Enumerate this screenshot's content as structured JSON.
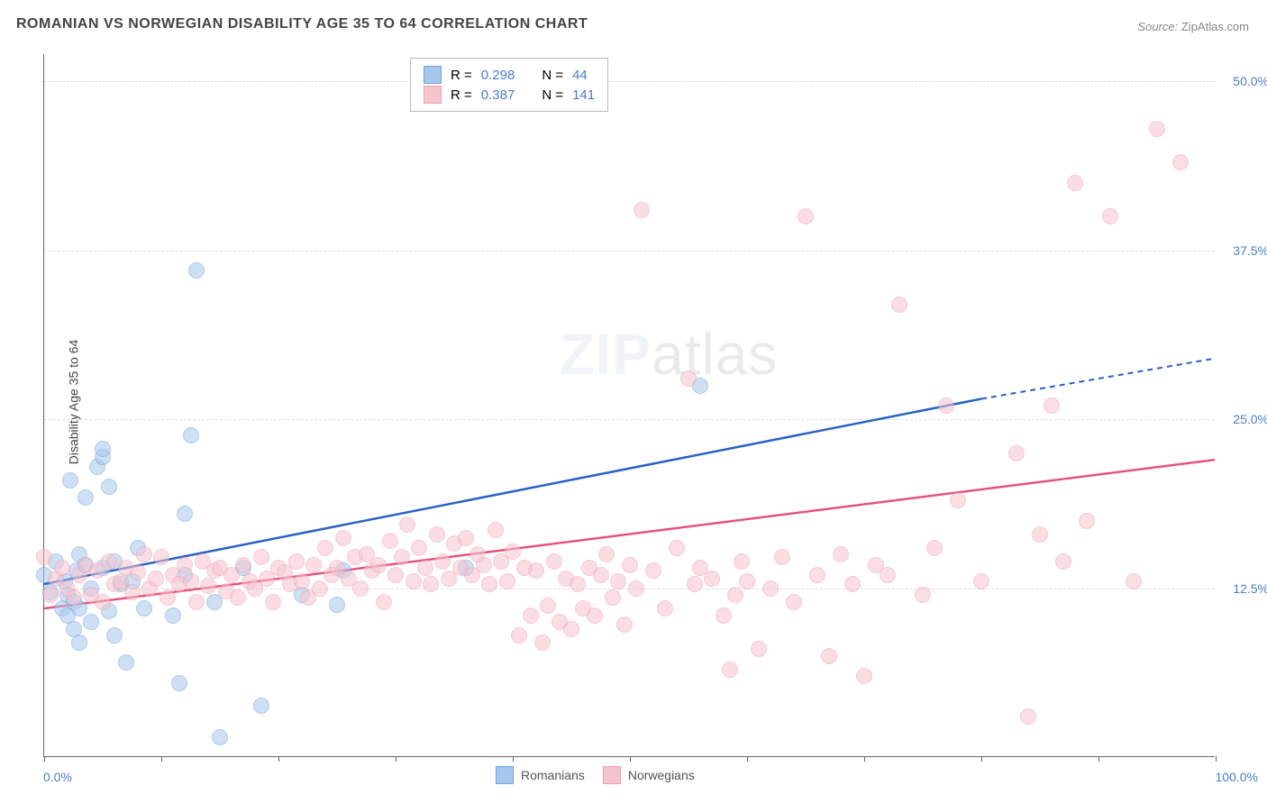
{
  "title": "ROMANIAN VS NORWEGIAN DISABILITY AGE 35 TO 64 CORRELATION CHART",
  "source_label": "Source:",
  "source_name": "ZipAtlas.com",
  "ylabel": "Disability Age 35 to 64",
  "watermark_bold": "ZIP",
  "watermark_light": "atlas",
  "chart": {
    "type": "scatter",
    "xlim": [
      0,
      100
    ],
    "ylim": [
      0,
      52
    ],
    "xtick_positions": [
      0,
      10,
      20,
      30,
      40,
      50,
      60,
      70,
      80,
      90,
      100
    ],
    "ytick_positions": [
      12.5,
      25.0,
      37.5,
      50.0
    ],
    "ytick_labels": [
      "12.5%",
      "25.0%",
      "37.5%",
      "50.0%"
    ],
    "xaxis_label_left": "0.0%",
    "xaxis_label_right": "100.0%",
    "background_color": "#ffffff",
    "grid_color": "#dddddd",
    "plot_border_color": "#666666",
    "point_radius": 9,
    "point_opacity": 0.55,
    "trend_line_width": 2.5,
    "series": [
      {
        "name": "Romanians",
        "color_fill": "#a8c7ec",
        "color_stroke": "#6da3de",
        "R": "0.298",
        "N": "44",
        "trend": {
          "x1": 0,
          "y1": 12.8,
          "x2": 80,
          "y2": 26.5,
          "dash_from_x": 80,
          "dash_to_x": 100,
          "dash_to_y": 29.5
        },
        "points": [
          [
            0,
            13.5
          ],
          [
            0.5,
            12.2
          ],
          [
            1,
            14.5
          ],
          [
            1.5,
            11
          ],
          [
            1.8,
            13
          ],
          [
            2,
            10.5
          ],
          [
            2,
            12
          ],
          [
            2.2,
            20.5
          ],
          [
            2.5,
            11.5
          ],
          [
            2.5,
            9.5
          ],
          [
            2.8,
            13.8
          ],
          [
            3,
            15
          ],
          [
            3,
            8.5
          ],
          [
            3,
            11
          ],
          [
            3.5,
            14.2
          ],
          [
            3.5,
            19.2
          ],
          [
            4,
            10
          ],
          [
            4,
            12.5
          ],
          [
            4.5,
            21.5
          ],
          [
            5,
            14
          ],
          [
            5,
            22.2
          ],
          [
            5,
            22.8
          ],
          [
            5.5,
            10.8
          ],
          [
            5.5,
            20
          ],
          [
            6,
            9
          ],
          [
            6,
            14.5
          ],
          [
            6.5,
            12.8
          ],
          [
            7,
            7
          ],
          [
            7.5,
            13
          ],
          [
            8,
            15.5
          ],
          [
            8.5,
            11
          ],
          [
            11,
            10.5
          ],
          [
            11.5,
            5.5
          ],
          [
            12,
            13.5
          ],
          [
            12,
            18
          ],
          [
            12.5,
            23.8
          ],
          [
            13,
            36
          ],
          [
            14.5,
            11.5
          ],
          [
            15,
            1.5
          ],
          [
            17,
            14
          ],
          [
            18.5,
            3.8
          ],
          [
            22,
            12
          ],
          [
            25,
            11.3
          ],
          [
            25.5,
            13.8
          ],
          [
            36,
            14
          ],
          [
            56,
            27.5
          ]
        ]
      },
      {
        "name": "Norwegians",
        "color_fill": "#f6c4ce",
        "color_stroke": "#eda2b3",
        "R": "0.387",
        "N": "141",
        "trend": {
          "x1": 0,
          "y1": 11.0,
          "x2": 100,
          "y2": 22.0
        },
        "points": [
          [
            0,
            14.8
          ],
          [
            0.5,
            12
          ],
          [
            1,
            13.2
          ],
          [
            1.5,
            14
          ],
          [
            2,
            12.5
          ],
          [
            2.5,
            11.8
          ],
          [
            3,
            13.5
          ],
          [
            3.5,
            14.2
          ],
          [
            4,
            12
          ],
          [
            4.5,
            13.8
          ],
          [
            5,
            11.5
          ],
          [
            5.5,
            14.5
          ],
          [
            6,
            12.8
          ],
          [
            6.5,
            13
          ],
          [
            7,
            14
          ],
          [
            7.5,
            12.2
          ],
          [
            8,
            13.7
          ],
          [
            8.5,
            15
          ],
          [
            9,
            12.5
          ],
          [
            9.5,
            13.2
          ],
          [
            10,
            14.8
          ],
          [
            10.5,
            11.8
          ],
          [
            11,
            13.5
          ],
          [
            11.5,
            12.8
          ],
          [
            12,
            14.2
          ],
          [
            12.5,
            13
          ],
          [
            13,
            11.5
          ],
          [
            13.5,
            14.5
          ],
          [
            14,
            12.7
          ],
          [
            14.5,
            13.8
          ],
          [
            15,
            14
          ],
          [
            15.5,
            12.3
          ],
          [
            16,
            13.5
          ],
          [
            16.5,
            11.8
          ],
          [
            17,
            14.2
          ],
          [
            17.5,
            13
          ],
          [
            18,
            12.5
          ],
          [
            18.5,
            14.8
          ],
          [
            19,
            13.2
          ],
          [
            19.5,
            11.5
          ],
          [
            20,
            14
          ],
          [
            20.5,
            13.7
          ],
          [
            21,
            12.8
          ],
          [
            21.5,
            14.5
          ],
          [
            22,
            13
          ],
          [
            22.5,
            11.8
          ],
          [
            23,
            14.2
          ],
          [
            23.5,
            12.5
          ],
          [
            24,
            15.5
          ],
          [
            24.5,
            13.5
          ],
          [
            25,
            14
          ],
          [
            25.5,
            16.2
          ],
          [
            26,
            13.2
          ],
          [
            26.5,
            14.8
          ],
          [
            27,
            12.5
          ],
          [
            27.5,
            15
          ],
          [
            28,
            13.8
          ],
          [
            28.5,
            14.2
          ],
          [
            29,
            11.5
          ],
          [
            29.5,
            16
          ],
          [
            30,
            13.5
          ],
          [
            30.5,
            14.8
          ],
          [
            31,
            17.2
          ],
          [
            31.5,
            13
          ],
          [
            32,
            15.5
          ],
          [
            32.5,
            14
          ],
          [
            33,
            12.8
          ],
          [
            33.5,
            16.5
          ],
          [
            34,
            14.5
          ],
          [
            34.5,
            13.2
          ],
          [
            35,
            15.8
          ],
          [
            35.5,
            14
          ],
          [
            36,
            16.2
          ],
          [
            36.5,
            13.5
          ],
          [
            37,
            15
          ],
          [
            37.5,
            14.2
          ],
          [
            38,
            12.8
          ],
          [
            38.5,
            16.8
          ],
          [
            39,
            14.5
          ],
          [
            39.5,
            13
          ],
          [
            40,
            15.2
          ],
          [
            40.5,
            9
          ],
          [
            41,
            14
          ],
          [
            41.5,
            10.5
          ],
          [
            42,
            13.8
          ],
          [
            42.5,
            8.5
          ],
          [
            43,
            11.2
          ],
          [
            43.5,
            14.5
          ],
          [
            44,
            10
          ],
          [
            44.5,
            13.2
          ],
          [
            45,
            9.5
          ],
          [
            45.5,
            12.8
          ],
          [
            46,
            11
          ],
          [
            46.5,
            14
          ],
          [
            47,
            10.5
          ],
          [
            47.5,
            13.5
          ],
          [
            48,
            15
          ],
          [
            48.5,
            11.8
          ],
          [
            49,
            13
          ],
          [
            49.5,
            9.8
          ],
          [
            50,
            14.2
          ],
          [
            50.5,
            12.5
          ],
          [
            51,
            40.5
          ],
          [
            52,
            13.8
          ],
          [
            53,
            11
          ],
          [
            54,
            15.5
          ],
          [
            55,
            28
          ],
          [
            55.5,
            12.8
          ],
          [
            56,
            14
          ],
          [
            57,
            13.2
          ],
          [
            58,
            10.5
          ],
          [
            58.5,
            6.5
          ],
          [
            59,
            12
          ],
          [
            59.5,
            14.5
          ],
          [
            60,
            13
          ],
          [
            61,
            8
          ],
          [
            62,
            12.5
          ],
          [
            63,
            14.8
          ],
          [
            64,
            11.5
          ],
          [
            65,
            40
          ],
          [
            66,
            13.5
          ],
          [
            67,
            7.5
          ],
          [
            68,
            15
          ],
          [
            69,
            12.8
          ],
          [
            70,
            6
          ],
          [
            71,
            14.2
          ],
          [
            72,
            13.5
          ],
          [
            73,
            33.5
          ],
          [
            75,
            12
          ],
          [
            76,
            15.5
          ],
          [
            77,
            26
          ],
          [
            78,
            19
          ],
          [
            80,
            13
          ],
          [
            83,
            22.5
          ],
          [
            84,
            3
          ],
          [
            85,
            16.5
          ],
          [
            86,
            26
          ],
          [
            87,
            14.5
          ],
          [
            88,
            42.5
          ],
          [
            89,
            17.5
          ],
          [
            91,
            40
          ],
          [
            93,
            13
          ],
          [
            95,
            46.5
          ],
          [
            97,
            44
          ]
        ]
      }
    ]
  },
  "legend_top": {
    "R_label": "R =",
    "N_label": "N ="
  },
  "legend_bottom": {
    "items": [
      "Romanians",
      "Norwegians"
    ]
  }
}
